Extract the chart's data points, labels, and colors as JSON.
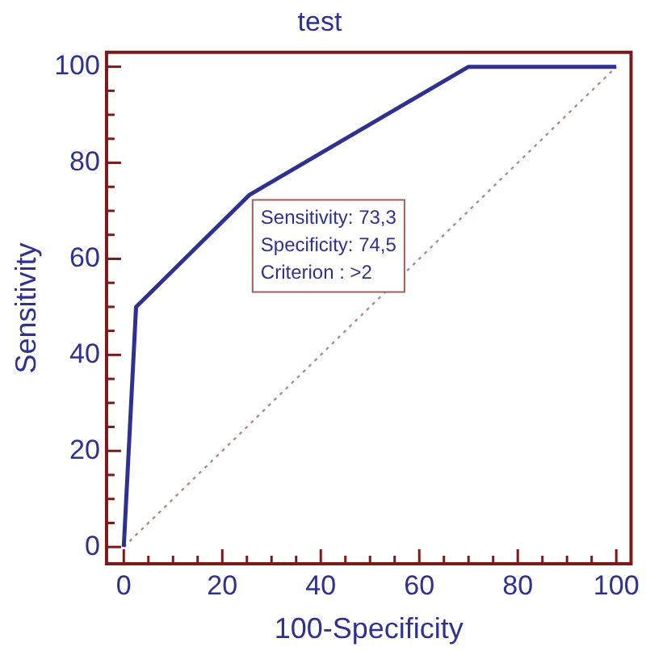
{
  "chart_data": {
    "type": "line",
    "title": "test",
    "xlabel": "100-Specificity",
    "ylabel": "Sensitivity",
    "series": [
      {
        "color": "#2e3192",
        "x": [
          0,
          2.5,
          25.5,
          70,
          100
        ],
        "values": [
          0,
          50,
          73.3,
          100,
          100
        ],
        "line_style": "solid"
      },
      {
        "color": "#b08a8a",
        "x": [
          0,
          100
        ],
        "values": [
          0,
          100
        ],
        "line_style": "dotted"
      }
    ],
    "xlim": [
      -3.5,
      103
    ],
    "ylim": [
      -3.5,
      103
    ],
    "xticks": [
      0,
      {
        "value": 5,
        "label": null
      },
      {
        "value": 10,
        "label": null
      },
      {
        "value": 15,
        "label": null
      },
      20,
      {
        "value": 25,
        "label": null
      },
      {
        "value": 30,
        "label": null
      },
      {
        "value": 35,
        "label": null
      },
      40,
      {
        "value": 45,
        "label": null
      },
      {
        "value": 50,
        "label": null
      },
      {
        "value": 55,
        "label": null
      },
      60,
      {
        "value": 65,
        "label": null
      },
      {
        "value": 70,
        "label": null
      },
      {
        "value": 75,
        "label": null
      },
      80,
      {
        "value": 85,
        "label": null
      },
      {
        "value": 90,
        "label": null
      },
      {
        "value": 95,
        "label": null
      },
      100
    ],
    "yticks": [
      0,
      {
        "value": 5,
        "label": null
      },
      {
        "value": 10,
        "label": null
      },
      {
        "value": 15,
        "label": null
      },
      20,
      {
        "value": 25,
        "label": null
      },
      {
        "value": 30,
        "label": null
      },
      {
        "value": 35,
        "label": null
      },
      40,
      {
        "value": 45,
        "label": null
      },
      {
        "value": 50,
        "label": null
      },
      {
        "value": 55,
        "label": null
      },
      60,
      {
        "value": 65,
        "label": null
      },
      {
        "value": 70,
        "label": null
      },
      {
        "value": 75,
        "label": null
      },
      80,
      {
        "value": 85,
        "label": null
      },
      {
        "value": 90,
        "label": null
      },
      {
        "value": 95,
        "label": null
      },
      100
    ],
    "annotations": [
      {
        "text": "Sensitivity: 73,3\nSpecificity: 74,5\nCriterion : >2",
        "x": 25.5,
        "y": 73.3
      }
    ],
    "grid": false,
    "legend": false,
    "marker": "none"
  }
}
